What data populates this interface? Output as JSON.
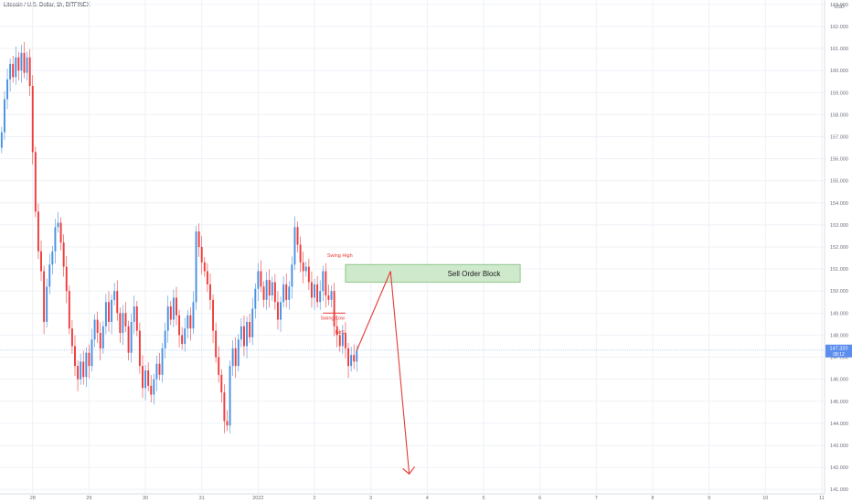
{
  "header": {
    "symbol_title": "Litecoin / U.S. Dollar, 1h, BITFINEX"
  },
  "colors": {
    "up": "#4a90e2",
    "down": "#ef3b3b",
    "grid": "#eef1f6",
    "axis_text": "#6b6f7a",
    "zone_fill": "#cfe9cd",
    "zone_stroke": "#8ec58a",
    "annotation": "#e53935",
    "price_tag": "#5b8def"
  },
  "price_axis": {
    "currency": "USD",
    "current_price": "147.320",
    "countdown": "08:12"
  },
  "chart_data": {
    "type": "candlestick",
    "title": "",
    "ylim": [
      140.8,
      163.2
    ],
    "yticks": [
      141,
      142,
      143,
      144,
      145,
      146,
      147,
      148,
      149,
      150,
      151,
      152,
      153,
      154,
      155,
      156,
      157,
      158,
      159,
      160,
      161,
      162,
      163
    ],
    "ytick_labels": [
      "141.000",
      "142.000",
      "143.000",
      "144.000",
      "145.000",
      "146.000",
      "147.000",
      "148.000",
      "149.000",
      "150.000",
      "151.000",
      "152.000",
      "153.000",
      "154.000",
      "155.000",
      "156.000",
      "157.000",
      "158.000",
      "159.000",
      "160.000",
      "161.000",
      "162.000",
      "163.000"
    ],
    "x_ticks": [
      "28",
      "29",
      "30",
      "31",
      "2022",
      "2",
      "3",
      "4",
      "5",
      "6",
      "7",
      "8",
      "9",
      "10",
      "11"
    ],
    "x_tick_day_index": [
      0,
      1,
      2,
      3,
      4,
      5,
      6,
      7,
      8,
      9,
      10,
      11,
      12,
      13,
      14
    ],
    "xlim_days": [
      -0.58,
      14.05
    ],
    "grid": true,
    "candles": [
      {
        "day": -0.55,
        "o": 156.5,
        "c": 157.2
      },
      {
        "day": -0.5,
        "o": 157.2,
        "c": 158.7
      },
      {
        "day": -0.45,
        "o": 158.7,
        "c": 159.6
      },
      {
        "day": -0.4,
        "o": 159.6,
        "c": 160.3
      },
      {
        "day": -0.35,
        "o": 160.3,
        "c": 159.7
      },
      {
        "day": -0.3,
        "o": 159.7,
        "c": 160.6
      },
      {
        "day": -0.25,
        "o": 160.6,
        "c": 160.0
      },
      {
        "day": -0.2,
        "o": 160.0,
        "c": 160.8
      },
      {
        "day": -0.15,
        "o": 160.8,
        "c": 159.9
      },
      {
        "day": -0.1,
        "o": 159.9,
        "c": 160.6
      },
      {
        "day": -0.05,
        "o": 160.6,
        "c": 159.3
      },
      {
        "day": 0.0,
        "o": 159.3,
        "c": 156.3
      },
      {
        "day": 0.05,
        "o": 156.3,
        "c": 153.6
      },
      {
        "day": 0.1,
        "o": 153.6,
        "c": 151.8
      },
      {
        "day": 0.15,
        "o": 151.8,
        "c": 150.9
      },
      {
        "day": 0.2,
        "o": 150.9,
        "c": 148.6
      },
      {
        "day": 0.25,
        "o": 148.6,
        "c": 150.2
      },
      {
        "day": 0.3,
        "o": 150.2,
        "c": 151.2
      },
      {
        "day": 0.35,
        "o": 151.2,
        "c": 151.8
      },
      {
        "day": 0.4,
        "o": 151.8,
        "c": 152.9
      },
      {
        "day": 0.45,
        "o": 152.9,
        "c": 153.1
      },
      {
        "day": 0.5,
        "o": 153.1,
        "c": 152.2
      },
      {
        "day": 0.55,
        "o": 152.2,
        "c": 151.1
      },
      {
        "day": 0.6,
        "o": 151.1,
        "c": 150.0
      },
      {
        "day": 0.65,
        "o": 150.0,
        "c": 148.3
      },
      {
        "day": 0.7,
        "o": 148.3,
        "c": 147.5
      },
      {
        "day": 0.75,
        "o": 147.5,
        "c": 146.6
      },
      {
        "day": 0.8,
        "o": 146.6,
        "c": 146.0
      },
      {
        "day": 0.85,
        "o": 146.0,
        "c": 146.8
      },
      {
        "day": 0.9,
        "o": 146.8,
        "c": 146.1
      },
      {
        "day": 0.95,
        "o": 146.1,
        "c": 147.2
      },
      {
        "day": 1.0,
        "o": 147.2,
        "c": 146.6
      },
      {
        "day": 1.05,
        "o": 146.6,
        "c": 147.8
      },
      {
        "day": 1.1,
        "o": 147.8,
        "c": 148.7
      },
      {
        "day": 1.15,
        "o": 148.7,
        "c": 148.1
      },
      {
        "day": 1.2,
        "o": 148.1,
        "c": 147.4
      },
      {
        "day": 1.25,
        "o": 147.4,
        "c": 148.4
      },
      {
        "day": 1.3,
        "o": 148.4,
        "c": 149.5
      },
      {
        "day": 1.35,
        "o": 149.5,
        "c": 148.6
      },
      {
        "day": 1.4,
        "o": 148.6,
        "c": 149.6
      },
      {
        "day": 1.45,
        "o": 149.6,
        "c": 150.0
      },
      {
        "day": 1.5,
        "o": 150.0,
        "c": 149.0
      },
      {
        "day": 1.55,
        "o": 149.0,
        "c": 148.1
      },
      {
        "day": 1.6,
        "o": 148.1,
        "c": 149.0
      },
      {
        "day": 1.65,
        "o": 149.0,
        "c": 148.4
      },
      {
        "day": 1.7,
        "o": 148.4,
        "c": 147.2
      },
      {
        "day": 1.75,
        "o": 147.2,
        "c": 148.6
      },
      {
        "day": 1.8,
        "o": 148.6,
        "c": 149.3
      },
      {
        "day": 1.85,
        "o": 149.3,
        "c": 148.2
      },
      {
        "day": 1.9,
        "o": 148.2,
        "c": 146.6
      },
      {
        "day": 1.95,
        "o": 146.6,
        "c": 145.6
      },
      {
        "day": 2.0,
        "o": 145.6,
        "c": 146.4
      },
      {
        "day": 2.05,
        "o": 146.4,
        "c": 145.7
      },
      {
        "day": 2.1,
        "o": 145.7,
        "c": 145.3
      },
      {
        "day": 2.15,
        "o": 145.3,
        "c": 146.0
      },
      {
        "day": 2.2,
        "o": 146.0,
        "c": 146.7
      },
      {
        "day": 2.25,
        "o": 146.7,
        "c": 146.2
      },
      {
        "day": 2.3,
        "o": 146.2,
        "c": 147.4
      },
      {
        "day": 2.35,
        "o": 147.4,
        "c": 148.2
      },
      {
        "day": 2.4,
        "o": 148.2,
        "c": 149.3
      },
      {
        "day": 2.45,
        "o": 149.3,
        "c": 148.7
      },
      {
        "day": 2.5,
        "o": 148.7,
        "c": 149.7
      },
      {
        "day": 2.55,
        "o": 149.7,
        "c": 148.9
      },
      {
        "day": 2.6,
        "o": 148.9,
        "c": 148.0
      },
      {
        "day": 2.65,
        "o": 148.0,
        "c": 147.6
      },
      {
        "day": 2.7,
        "o": 147.6,
        "c": 148.3
      },
      {
        "day": 2.75,
        "o": 148.3,
        "c": 148.9
      },
      {
        "day": 2.8,
        "o": 148.9,
        "c": 148.3
      },
      {
        "day": 2.85,
        "o": 148.3,
        "c": 149.5
      },
      {
        "day": 2.9,
        "o": 149.5,
        "c": 152.7
      },
      {
        "day": 2.95,
        "o": 152.7,
        "c": 152.0
      },
      {
        "day": 3.0,
        "o": 152.0,
        "c": 151.3
      },
      {
        "day": 3.05,
        "o": 151.3,
        "c": 150.9
      },
      {
        "day": 3.1,
        "o": 150.9,
        "c": 150.3
      },
      {
        "day": 3.15,
        "o": 150.3,
        "c": 149.6
      },
      {
        "day": 3.2,
        "o": 149.6,
        "c": 148.2
      },
      {
        "day": 3.25,
        "o": 148.2,
        "c": 147.0
      },
      {
        "day": 3.3,
        "o": 147.0,
        "c": 146.2
      },
      {
        "day": 3.35,
        "o": 146.2,
        "c": 145.4
      },
      {
        "day": 3.4,
        "o": 145.4,
        "c": 144.1
      },
      {
        "day": 3.45,
        "o": 144.1,
        "c": 143.9
      },
      {
        "day": 3.5,
        "o": 143.9,
        "c": 146.6
      },
      {
        "day": 3.55,
        "o": 146.6,
        "c": 147.4
      },
      {
        "day": 3.6,
        "o": 147.4,
        "c": 146.6
      },
      {
        "day": 3.65,
        "o": 146.6,
        "c": 147.8
      },
      {
        "day": 3.7,
        "o": 147.8,
        "c": 148.4
      },
      {
        "day": 3.75,
        "o": 148.4,
        "c": 147.5
      },
      {
        "day": 3.8,
        "o": 147.5,
        "c": 148.6
      },
      {
        "day": 3.85,
        "o": 148.6,
        "c": 147.9
      },
      {
        "day": 3.9,
        "o": 147.9,
        "c": 149.2
      },
      {
        "day": 3.95,
        "o": 149.2,
        "c": 150.1
      },
      {
        "day": 4.0,
        "o": 150.1,
        "c": 150.9
      },
      {
        "day": 4.05,
        "o": 150.9,
        "c": 150.2
      },
      {
        "day": 4.1,
        "o": 150.2,
        "c": 149.6
      },
      {
        "day": 4.15,
        "o": 149.6,
        "c": 150.5
      },
      {
        "day": 4.2,
        "o": 150.5,
        "c": 149.8
      },
      {
        "day": 4.25,
        "o": 149.8,
        "c": 150.4
      },
      {
        "day": 4.3,
        "o": 150.4,
        "c": 149.5
      },
      {
        "day": 4.35,
        "o": 149.5,
        "c": 148.7
      },
      {
        "day": 4.4,
        "o": 148.7,
        "c": 149.5
      },
      {
        "day": 4.45,
        "o": 149.5,
        "c": 150.3
      },
      {
        "day": 4.5,
        "o": 150.3,
        "c": 149.6
      },
      {
        "day": 4.55,
        "o": 149.6,
        "c": 150.2
      },
      {
        "day": 4.6,
        "o": 150.2,
        "c": 151.2
      },
      {
        "day": 4.65,
        "o": 151.2,
        "c": 152.9
      },
      {
        "day": 4.7,
        "o": 152.9,
        "c": 152.1
      },
      {
        "day": 4.75,
        "o": 152.1,
        "c": 151.3
      },
      {
        "day": 4.8,
        "o": 151.3,
        "c": 150.9
      },
      {
        "day": 4.85,
        "o": 150.9,
        "c": 151.1
      },
      {
        "day": 4.9,
        "o": 151.1,
        "c": 150.4
      },
      {
        "day": 4.95,
        "o": 150.4,
        "c": 149.7
      },
      {
        "day": 5.0,
        "o": 149.7,
        "c": 150.3
      },
      {
        "day": 5.05,
        "o": 150.3,
        "c": 149.5
      },
      {
        "day": 5.1,
        "o": 149.5,
        "c": 150.0
      },
      {
        "day": 5.15,
        "o": 150.0,
        "c": 150.9
      },
      {
        "day": 5.2,
        "o": 150.9,
        "c": 149.8
      },
      {
        "day": 5.25,
        "o": 149.8,
        "c": 149.6
      },
      {
        "day": 5.3,
        "o": 149.6,
        "c": 150.0
      },
      {
        "day": 5.35,
        "o": 150.0,
        "c": 148.4
      },
      {
        "day": 5.4,
        "o": 148.4,
        "c": 148.0
      },
      {
        "day": 5.45,
        "o": 148.0,
        "c": 147.5
      },
      {
        "day": 5.5,
        "o": 147.5,
        "c": 148.1
      },
      {
        "day": 5.55,
        "o": 148.1,
        "c": 147.4
      },
      {
        "day": 5.6,
        "o": 147.4,
        "c": 146.6
      },
      {
        "day": 5.65,
        "o": 146.6,
        "c": 147.1
      },
      {
        "day": 5.7,
        "o": 147.1,
        "c": 146.8
      },
      {
        "day": 5.75,
        "o": 146.8,
        "c": 147.3
      }
    ],
    "price_line": 147.32,
    "sell_order_block": {
      "day_start": 5.55,
      "day_end": 8.65,
      "low": 150.4,
      "high": 151.2,
      "label": "Sell Order Block"
    },
    "annotations": [
      {
        "text": "Swing High",
        "day": 5.45,
        "price": 151.55
      },
      {
        "text": "Swing Low",
        "day": 5.32,
        "price": 148.7
      },
      {
        "text": "BoS",
        "day": 5.45,
        "price": 148.05
      }
    ],
    "bos_line": {
      "day_start": 5.15,
      "day_end": 5.55,
      "price": 149.0
    },
    "projection": [
      {
        "day": 5.75,
        "price": 147.3
      },
      {
        "day": 6.35,
        "price": 150.9
      },
      {
        "day": 6.68,
        "price": 141.7
      }
    ]
  }
}
